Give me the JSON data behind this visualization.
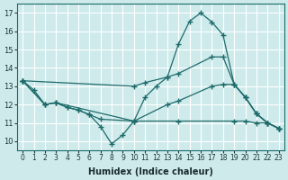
{
  "xlabel": "Humidex (Indice chaleur)",
  "xlim": [
    -0.5,
    23.5
  ],
  "ylim": [
    9.5,
    17.5
  ],
  "yticks": [
    10,
    11,
    12,
    13,
    14,
    15,
    16,
    17
  ],
  "xticks": [
    0,
    1,
    2,
    3,
    4,
    5,
    6,
    7,
    8,
    9,
    10,
    11,
    12,
    13,
    14,
    15,
    16,
    17,
    18,
    19,
    20,
    21,
    22,
    23
  ],
  "bg_color": "#ceeaeb",
  "grid_color": "#ffffff",
  "line_color": "#1e6b6b",
  "lines": [
    {
      "x": [
        0,
        1,
        2,
        3,
        4,
        5,
        6,
        7,
        8,
        9,
        10,
        11,
        12,
        13,
        14,
        15,
        16,
        17,
        18,
        19,
        20,
        21,
        22,
        23
      ],
      "y": [
        13.3,
        12.8,
        12.0,
        12.1,
        11.85,
        11.7,
        11.45,
        10.8,
        9.85,
        10.35,
        11.1,
        12.4,
        13.0,
        13.5,
        15.3,
        16.55,
        17.0,
        16.5,
        15.8,
        13.1,
        12.4,
        11.5,
        11.0,
        10.7
      ]
    },
    {
      "x": [
        0,
        10,
        11,
        13,
        14,
        17,
        18,
        19,
        20,
        21,
        22,
        23
      ],
      "y": [
        13.3,
        13.0,
        13.2,
        13.5,
        13.7,
        14.6,
        14.6,
        13.1,
        12.4,
        11.5,
        11.0,
        10.7
      ]
    },
    {
      "x": [
        0,
        2,
        3,
        4,
        5,
        6,
        7,
        10,
        13,
        14,
        17,
        18,
        19,
        20,
        21,
        22,
        23
      ],
      "y": [
        13.3,
        12.0,
        12.1,
        11.85,
        11.7,
        11.45,
        11.2,
        11.1,
        12.0,
        12.2,
        13.0,
        13.1,
        13.1,
        12.4,
        11.5,
        11.0,
        10.7
      ]
    },
    {
      "x": [
        0,
        2,
        3,
        10,
        14,
        19,
        20,
        21,
        22,
        23
      ],
      "y": [
        13.3,
        12.0,
        12.1,
        11.1,
        11.1,
        11.1,
        11.1,
        11.0,
        11.0,
        10.7
      ]
    }
  ]
}
